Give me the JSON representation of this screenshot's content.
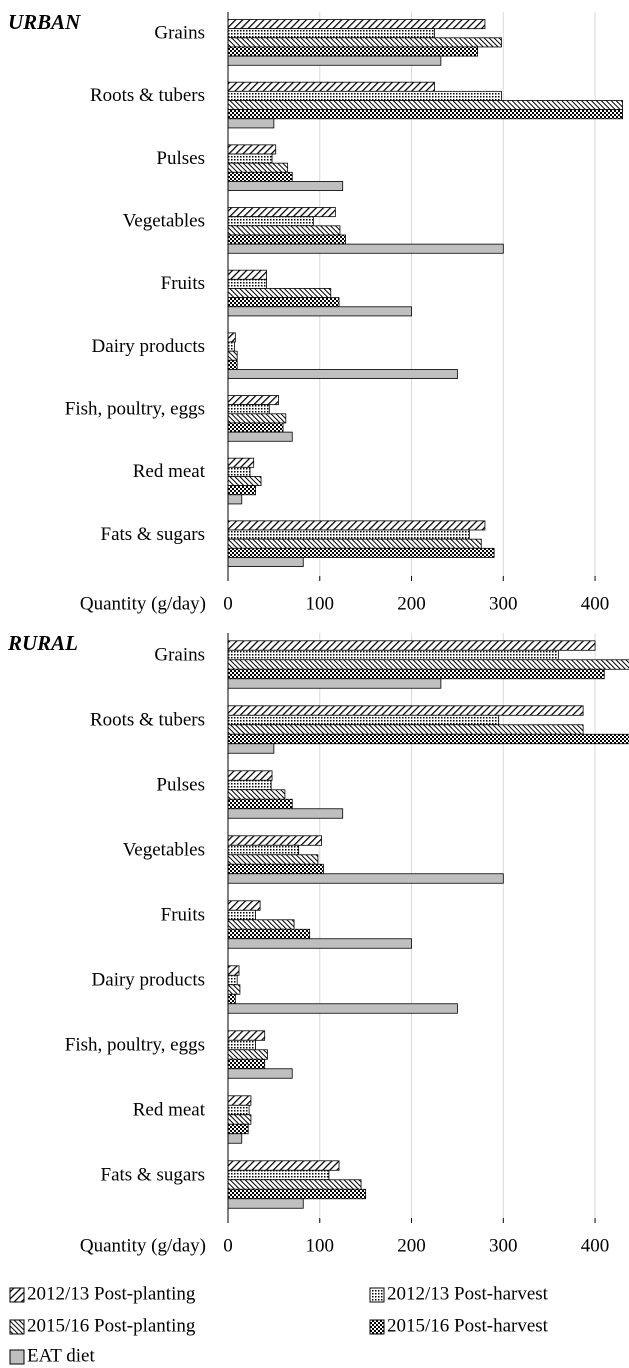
{
  "chart_data": [
    {
      "type": "bar",
      "orientation": "horizontal",
      "title": "URBAN",
      "xlabel": "Quantity (g/day)",
      "categories": [
        "Grains",
        "Roots & tubers",
        "Pulses",
        "Vegetables",
        "Fruits",
        "Dairy products",
        "Fish, poultry, eggs",
        "Red meat",
        "Fats & sugars"
      ],
      "xlim": [
        0,
        437
      ],
      "xticks": [
        0,
        100,
        200,
        300,
        400
      ],
      "grid": true,
      "series": [
        {
          "name": "2012/13 Post-planting",
          "color": "#000000",
          "pattern": "diagonal",
          "values": [
            280,
            225,
            52,
            117,
            42,
            8,
            55,
            28,
            280
          ]
        },
        {
          "name": "2012/13 Post-harvest",
          "color": "#000000",
          "pattern": "dots",
          "values": [
            225,
            298,
            48,
            93,
            42,
            7,
            45,
            24,
            263
          ]
        },
        {
          "name": "2015/16 Post-planting",
          "color": "#000000",
          "pattern": "dense-diagonal",
          "values": [
            298,
            430,
            65,
            122,
            112,
            10,
            63,
            36,
            276
          ]
        },
        {
          "name": "2015/16 Post-harvest",
          "color": "#000000",
          "pattern": "checker",
          "values": [
            272,
            430,
            70,
            128,
            121,
            10,
            60,
            30,
            290
          ]
        },
        {
          "name": "EAT diet",
          "color": "#bfbfbf",
          "pattern": "solid",
          "values": [
            232,
            50,
            125,
            300,
            200,
            250,
            70,
            15,
            82
          ]
        }
      ]
    },
    {
      "type": "bar",
      "orientation": "horizontal",
      "title": "RURAL",
      "xlabel": "Quantity (g/day)",
      "categories": [
        "Grains",
        "Roots & tubers",
        "Pulses",
        "Vegetables",
        "Fruits",
        "Dairy products",
        "Fish, poultry, eggs",
        "Red meat",
        "Fats & sugars"
      ],
      "xlim": [
        0,
        437
      ],
      "xticks": [
        0,
        100,
        200,
        300,
        400
      ],
      "grid": true,
      "series": [
        {
          "color": "#000000",
          "pattern": "diagonal",
          "values": [
            400,
            387,
            48,
            102,
            35,
            12,
            40,
            25,
            121
          ]
        },
        {
          "color": "#000000",
          "pattern": "dots",
          "values": [
            360,
            295,
            47,
            77,
            30,
            10,
            30,
            23,
            110
          ]
        },
        {
          "color": "#000000",
          "pattern": "dense-diagonal",
          "values": [
            450,
            387,
            62,
            98,
            72,
            13,
            43,
            25,
            145
          ]
        },
        {
          "color": "#000000",
          "pattern": "checker",
          "values": [
            410,
            450,
            70,
            104,
            89,
            8,
            40,
            22,
            150
          ]
        },
        {
          "color": "#bfbfbf",
          "pattern": "solid",
          "values": [
            232,
            50,
            125,
            300,
            200,
            250,
            70,
            15,
            82
          ]
        }
      ]
    }
  ]
}
